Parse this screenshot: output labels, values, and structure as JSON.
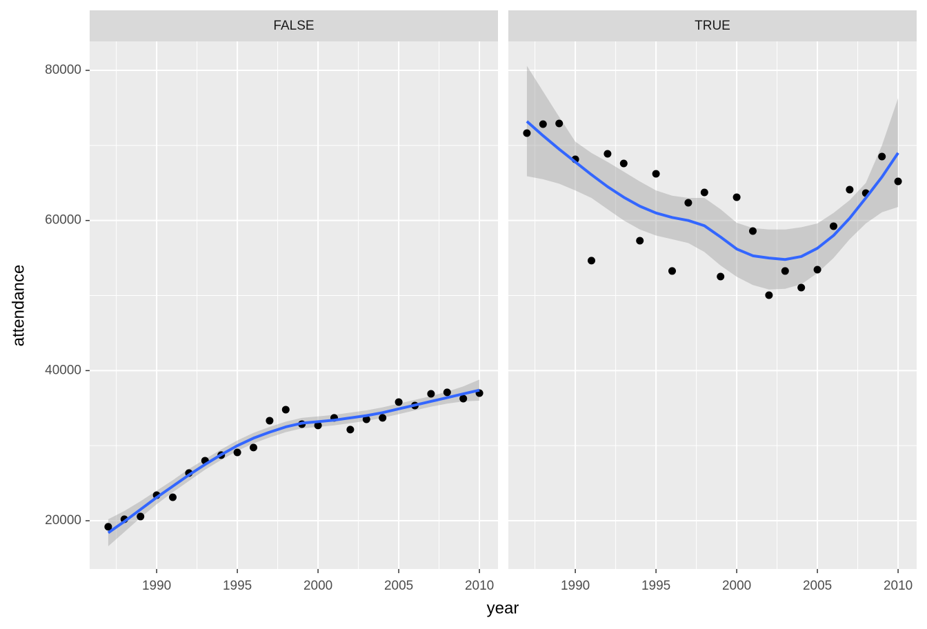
{
  "chart_data": [
    {
      "type": "scatter",
      "title": "FALSE",
      "x_label": "year",
      "y_label": "attendance",
      "x": [
        1987,
        1988,
        1989,
        1990,
        1991,
        1992,
        1993,
        1994,
        1995,
        1996,
        1997,
        1998,
        1999,
        2000,
        2001,
        2002,
        2003,
        2004,
        2005,
        2006,
        2007,
        2008,
        2009,
        2010
      ],
      "values": [
        19200,
        20200,
        20560,
        23400,
        23130,
        26350,
        28000,
        28740,
        29100,
        29750,
        33330,
        34800,
        32870,
        32690,
        33700,
        32140,
        33510,
        33700,
        35810,
        35350,
        36910,
        37100,
        36270,
        37000
      ],
      "color": "#000000",
      "smooth": {
        "color": "#3366FF",
        "band_color": "#999999",
        "values": [
          18400,
          19900,
          21500,
          23100,
          24600,
          26100,
          27500,
          28800,
          30000,
          31000,
          31800,
          32500,
          33000,
          33200,
          33400,
          33700,
          34000,
          34400,
          34900,
          35400,
          35900,
          36400,
          36900,
          37400
        ],
        "lower": [
          16600,
          18500,
          20400,
          22200,
          23800,
          25300,
          26800,
          28100,
          29300,
          30300,
          31100,
          31800,
          32300,
          32500,
          32700,
          33000,
          33300,
          33700,
          34200,
          34700,
          35200,
          35600,
          35900,
          36000
        ],
        "upper": [
          20200,
          21300,
          22600,
          24000,
          25400,
          26900,
          28200,
          29500,
          30700,
          31700,
          32500,
          33200,
          33700,
          33900,
          34100,
          34400,
          34700,
          35100,
          35600,
          36100,
          36600,
          37200,
          37900,
          38800
        ]
      },
      "xlim": [
        1985.85,
        2011.15
      ],
      "ylim": [
        13570,
        83860
      ],
      "xticks": [
        1990,
        1995,
        2000,
        2005,
        2010
      ],
      "yticks": [
        20000,
        40000,
        60000,
        80000
      ]
    },
    {
      "type": "scatter",
      "title": "TRUE",
      "x": [
        1987,
        1988,
        1989,
        1990,
        1991,
        1992,
        1993,
        1994,
        1995,
        1996,
        1997,
        1998,
        1999,
        2000,
        2001,
        2002,
        2003,
        2004,
        2005,
        2006,
        2007,
        2008,
        2009,
        2010
      ],
      "values": [
        71640,
        72830,
        72930,
        68150,
        54650,
        68880,
        67600,
        57310,
        66220,
        53270,
        62360,
        63740,
        52530,
        63100,
        58590,
        50050,
        53270,
        51060,
        53450,
        59240,
        64110,
        63650,
        68520,
        65210
      ],
      "color": "#000000",
      "smooth": {
        "color": "#3366FF",
        "band_color": "#999999",
        "values": [
          73200,
          71300,
          69500,
          67800,
          66100,
          64500,
          63100,
          61900,
          61000,
          60400,
          60000,
          59300,
          57800,
          56200,
          55300,
          55000,
          54800,
          55200,
          56300,
          58000,
          60300,
          63000,
          65800,
          69000
        ],
        "lower": [
          65900,
          65500,
          64900,
          64000,
          63000,
          61500,
          60000,
          58800,
          58000,
          57500,
          57000,
          55800,
          54000,
          52500,
          51400,
          50800,
          50900,
          51500,
          53000,
          55000,
          57500,
          59600,
          61100,
          61800
        ],
        "upper": [
          80600,
          77200,
          73800,
          70500,
          69000,
          67800,
          66500,
          65200,
          64000,
          63300,
          63000,
          63000,
          61500,
          59700,
          59000,
          58800,
          58800,
          59100,
          59600,
          61000,
          62700,
          65000,
          70000,
          76300
        ]
      },
      "xlim": [
        1985.85,
        2011.15
      ],
      "ylim": [
        13570,
        83860
      ],
      "xticks": [
        1990,
        1995,
        2000,
        2005,
        2010
      ],
      "yticks": [
        20000,
        40000,
        60000,
        80000
      ]
    }
  ]
}
